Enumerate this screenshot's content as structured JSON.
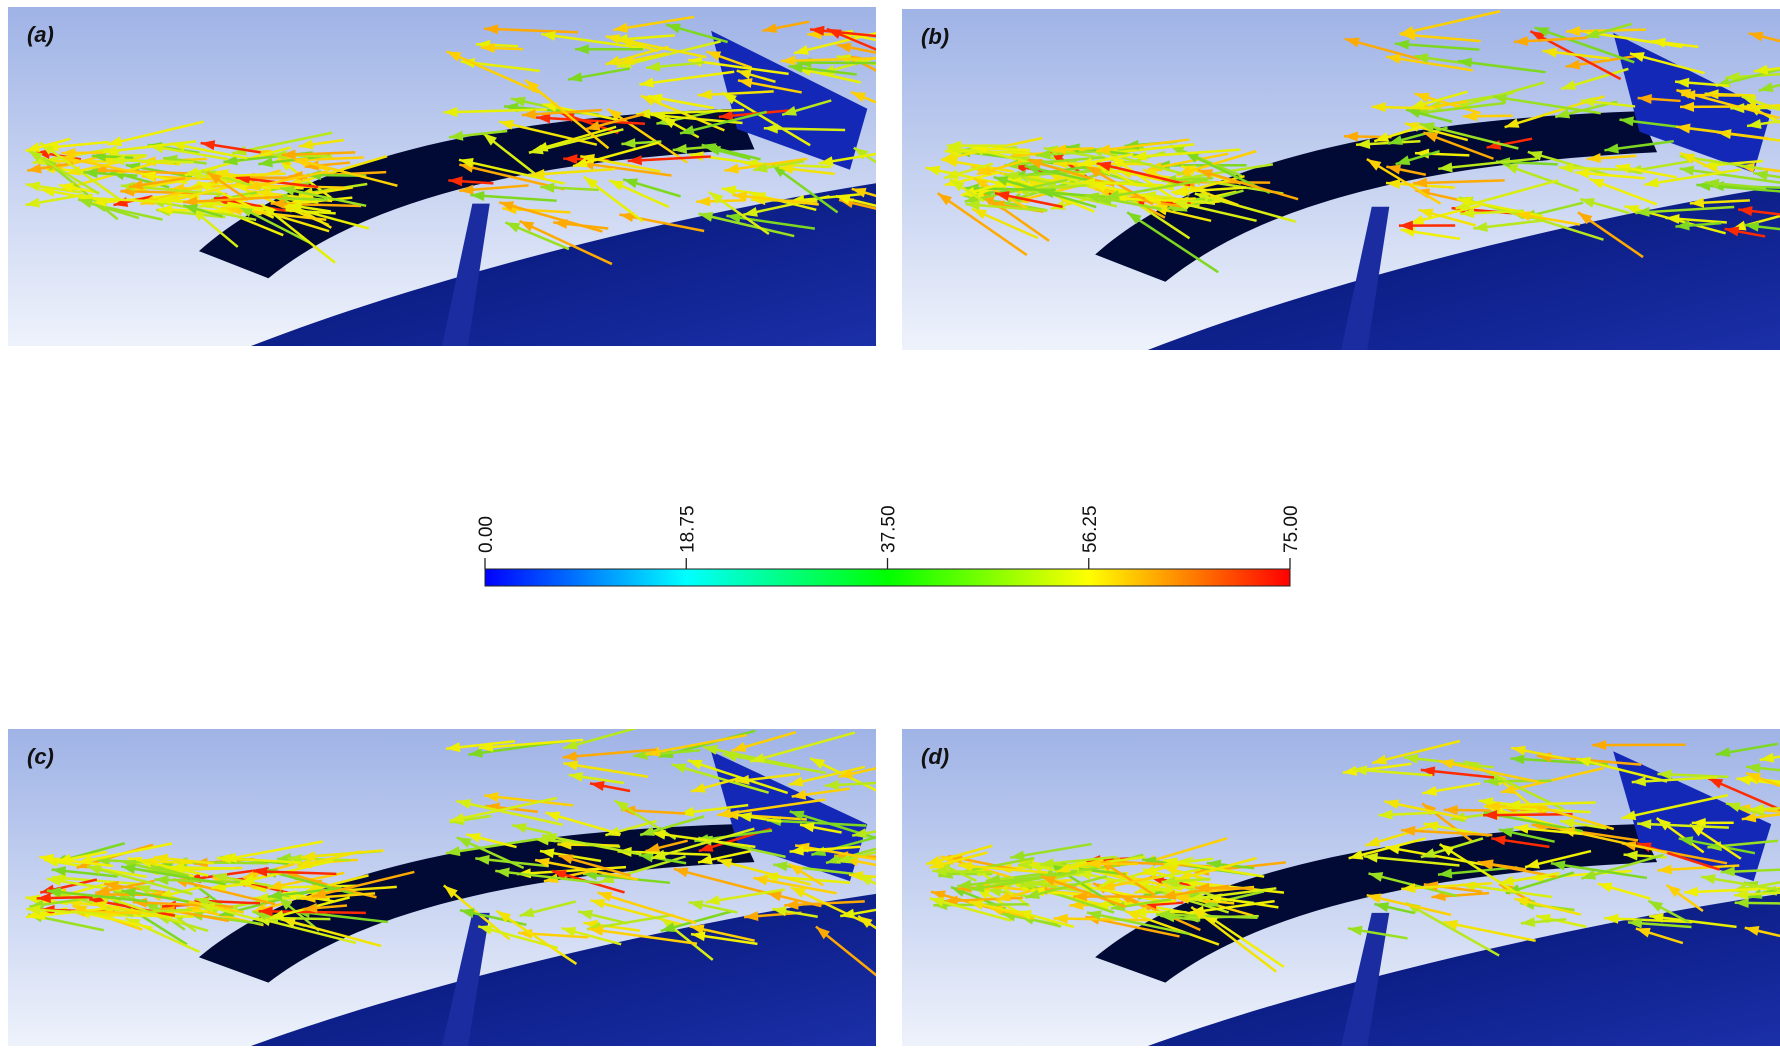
{
  "panels": [
    {
      "label": "(a)"
    },
    {
      "label": "(b)"
    },
    {
      "label": "(c)"
    },
    {
      "label": "(d)"
    }
  ],
  "colorbar": {
    "ticks": [
      {
        "value": 0,
        "label": "0.00"
      },
      {
        "value": 18.75,
        "label": "18.75"
      },
      {
        "value": 37.5,
        "label": "37.50"
      },
      {
        "value": 56.25,
        "label": "56.25"
      },
      {
        "value": 75,
        "label": "75.00"
      }
    ]
  }
}
